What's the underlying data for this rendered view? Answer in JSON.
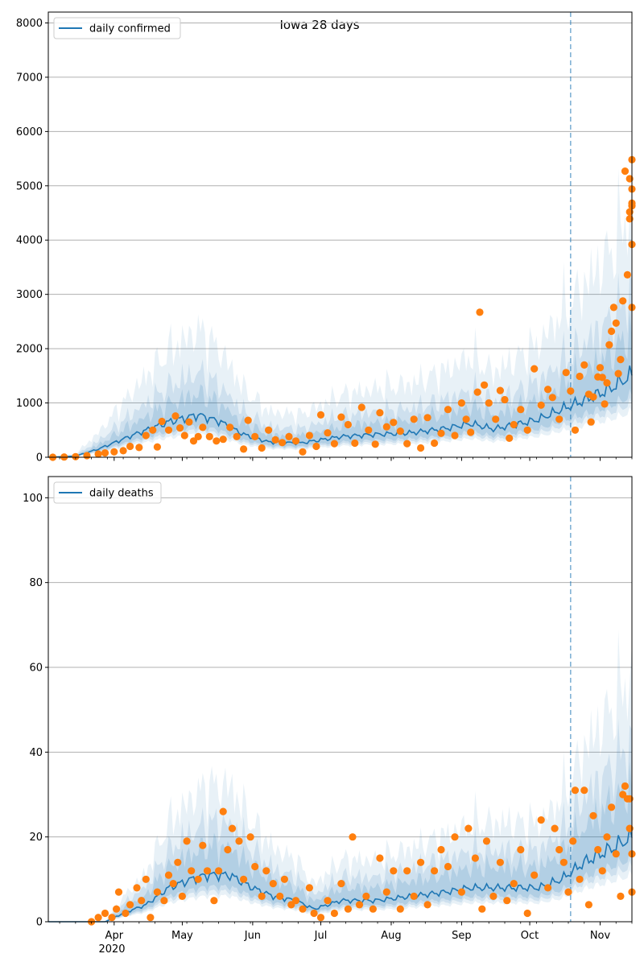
{
  "figure": {
    "title": "Iowa 28 days",
    "x_tick_labels": [
      "Apr",
      "May",
      "Jun",
      "Jul",
      "Aug",
      "Sep",
      "Oct",
      "Nov"
    ],
    "x_year_label": "2020"
  },
  "colors": {
    "line": "#1f77b4",
    "points": "#ff7f0e",
    "band": "#1f77b4",
    "grid": "#b0b0b0",
    "vline": "#1f77b4"
  },
  "chart_data": [
    {
      "type": "scatter",
      "legend": "daily confirmed",
      "legend_position": "top-left",
      "grid": "horizontal",
      "xlim": [
        "2020-03-03",
        "2020-11-15"
      ],
      "ylim": [
        0,
        8200
      ],
      "yticks": [
        0,
        1000,
        2000,
        3000,
        4000,
        5000,
        6000,
        7000,
        8000
      ],
      "vline_date": "2020-10-19",
      "trend_keypoints": [
        [
          "2020-03-03",
          0
        ],
        [
          "2020-03-15",
          20
        ],
        [
          "2020-03-25",
          150
        ],
        [
          "2020-04-10",
          420
        ],
        [
          "2020-04-25",
          650
        ],
        [
          "2020-05-08",
          780
        ],
        [
          "2020-05-18",
          650
        ],
        [
          "2020-05-28",
          420
        ],
        [
          "2020-06-08",
          280
        ],
        [
          "2020-06-22",
          260
        ],
        [
          "2020-07-10",
          380
        ],
        [
          "2020-07-25",
          420
        ],
        [
          "2020-08-10",
          450
        ],
        [
          "2020-08-25",
          530
        ],
        [
          "2020-09-05",
          620
        ],
        [
          "2020-09-15",
          520
        ],
        [
          "2020-09-25",
          600
        ],
        [
          "2020-10-05",
          700
        ],
        [
          "2020-10-15",
          880
        ],
        [
          "2020-10-25",
          1050
        ],
        [
          "2020-11-05",
          1250
        ],
        [
          "2020-11-15",
          1520
        ]
      ],
      "band_scales": [
        3.0,
        2.0,
        1.5
      ],
      "inner_band_scales": [
        0.55,
        0.75
      ],
      "points": [
        [
          "2020-03-05",
          0
        ],
        [
          "2020-03-10",
          5
        ],
        [
          "2020-03-15",
          10
        ],
        [
          "2020-03-20",
          30
        ],
        [
          "2020-03-25",
          60
        ],
        [
          "2020-03-28",
          80
        ],
        [
          "2020-04-01",
          100
        ],
        [
          "2020-04-05",
          120
        ],
        [
          "2020-04-08",
          200
        ],
        [
          "2020-04-12",
          180
        ],
        [
          "2020-04-15",
          400
        ],
        [
          "2020-04-18",
          500
        ],
        [
          "2020-04-20",
          190
        ],
        [
          "2020-04-22",
          660
        ],
        [
          "2020-04-25",
          500
        ],
        [
          "2020-04-28",
          760
        ],
        [
          "2020-04-30",
          540
        ],
        [
          "2020-05-02",
          400
        ],
        [
          "2020-05-04",
          650
        ],
        [
          "2020-05-06",
          300
        ],
        [
          "2020-05-08",
          380
        ],
        [
          "2020-05-10",
          550
        ],
        [
          "2020-05-13",
          380
        ],
        [
          "2020-05-16",
          300
        ],
        [
          "2020-05-19",
          330
        ],
        [
          "2020-05-22",
          550
        ],
        [
          "2020-05-25",
          380
        ],
        [
          "2020-05-28",
          150
        ],
        [
          "2020-05-30",
          680
        ],
        [
          "2020-06-02",
          380
        ],
        [
          "2020-06-05",
          170
        ],
        [
          "2020-06-08",
          500
        ],
        [
          "2020-06-11",
          320
        ],
        [
          "2020-06-14",
          270
        ],
        [
          "2020-06-17",
          380
        ],
        [
          "2020-06-20",
          300
        ],
        [
          "2020-06-23",
          100
        ],
        [
          "2020-06-26",
          400
        ],
        [
          "2020-06-29",
          200
        ],
        [
          "2020-07-01",
          780
        ],
        [
          "2020-07-04",
          450
        ],
        [
          "2020-07-07",
          250
        ],
        [
          "2020-07-10",
          740
        ],
        [
          "2020-07-13",
          600
        ],
        [
          "2020-07-16",
          260
        ],
        [
          "2020-07-19",
          920
        ],
        [
          "2020-07-22",
          500
        ],
        [
          "2020-07-25",
          240
        ],
        [
          "2020-07-27",
          820
        ],
        [
          "2020-07-30",
          560
        ],
        [
          "2020-08-02",
          640
        ],
        [
          "2020-08-05",
          480
        ],
        [
          "2020-08-08",
          250
        ],
        [
          "2020-08-11",
          700
        ],
        [
          "2020-08-14",
          170
        ],
        [
          "2020-08-17",
          730
        ],
        [
          "2020-08-20",
          260
        ],
        [
          "2020-08-23",
          440
        ],
        [
          "2020-08-26",
          880
        ],
        [
          "2020-08-29",
          400
        ],
        [
          "2020-09-01",
          1000
        ],
        [
          "2020-09-03",
          700
        ],
        [
          "2020-09-05",
          460
        ],
        [
          "2020-09-08",
          1200
        ],
        [
          "2020-09-09",
          2670
        ],
        [
          "2020-09-11",
          1330
        ],
        [
          "2020-09-13",
          1000
        ],
        [
          "2020-09-16",
          700
        ],
        [
          "2020-09-18",
          1230
        ],
        [
          "2020-09-20",
          1060
        ],
        [
          "2020-09-22",
          350
        ],
        [
          "2020-09-24",
          600
        ],
        [
          "2020-09-27",
          880
        ],
        [
          "2020-09-30",
          500
        ],
        [
          "2020-10-03",
          1630
        ],
        [
          "2020-10-06",
          960
        ],
        [
          "2020-10-09",
          1250
        ],
        [
          "2020-10-11",
          1100
        ],
        [
          "2020-10-14",
          700
        ],
        [
          "2020-10-17",
          1560
        ],
        [
          "2020-10-19",
          1220
        ],
        [
          "2020-10-21",
          500
        ],
        [
          "2020-10-23",
          1490
        ],
        [
          "2020-10-25",
          1700
        ],
        [
          "2020-10-27",
          1160
        ],
        [
          "2020-10-28",
          650
        ],
        [
          "2020-10-29",
          1110
        ],
        [
          "2020-10-31",
          1480
        ],
        [
          "2020-11-01",
          1650
        ],
        [
          "2020-11-02",
          1470
        ],
        [
          "2020-11-03",
          980
        ],
        [
          "2020-11-04",
          1370
        ],
        [
          "2020-11-05",
          2070
        ],
        [
          "2020-11-06",
          2320
        ],
        [
          "2020-11-07",
          2760
        ],
        [
          "2020-11-08",
          2470
        ],
        [
          "2020-11-09",
          1540
        ],
        [
          "2020-11-10",
          1800
        ],
        [
          "2020-11-11",
          2880
        ],
        [
          "2020-11-12",
          5270
        ],
        [
          "2020-11-13",
          3360
        ],
        [
          "2020-11-14",
          4390
        ],
        [
          "2020-11-14",
          4520
        ],
        [
          "2020-11-14",
          5130
        ],
        [
          "2020-11-15",
          3920
        ],
        [
          "2020-11-15",
          4630
        ],
        [
          "2020-11-15",
          4940
        ],
        [
          "2020-11-15",
          5480
        ],
        [
          "2020-11-15",
          4680
        ],
        [
          "2020-11-15",
          2760
        ]
      ]
    },
    {
      "type": "scatter",
      "legend": "daily deaths",
      "legend_position": "top-left",
      "grid": "horizontal",
      "xlim": [
        "2020-03-03",
        "2020-11-15"
      ],
      "ylim": [
        0,
        105
      ],
      "yticks": [
        0,
        20,
        40,
        60,
        80,
        100
      ],
      "vline_date": "2020-10-19",
      "trend_keypoints": [
        [
          "2020-03-03",
          0
        ],
        [
          "2020-03-28",
          0
        ],
        [
          "2020-04-05",
          2
        ],
        [
          "2020-04-15",
          4
        ],
        [
          "2020-04-25",
          8
        ],
        [
          "2020-05-05",
          10
        ],
        [
          "2020-05-12",
          11
        ],
        [
          "2020-05-22",
          11
        ],
        [
          "2020-06-01",
          8
        ],
        [
          "2020-06-10",
          6
        ],
        [
          "2020-06-20",
          5
        ],
        [
          "2020-06-28",
          3
        ],
        [
          "2020-07-10",
          5
        ],
        [
          "2020-07-25",
          5
        ],
        [
          "2020-08-10",
          6
        ],
        [
          "2020-08-25",
          7
        ],
        [
          "2020-09-05",
          8
        ],
        [
          "2020-09-20",
          8
        ],
        [
          "2020-10-05",
          8
        ],
        [
          "2020-10-15",
          10
        ],
        [
          "2020-10-25",
          14
        ],
        [
          "2020-11-05",
          17
        ],
        [
          "2020-11-15",
          20
        ]
      ],
      "band_scales": [
        2.9,
        2.1,
        1.6
      ],
      "inner_band_scales": [
        0.55,
        0.75
      ],
      "points": [
        [
          "2020-03-22",
          0
        ],
        [
          "2020-03-25",
          1
        ],
        [
          "2020-03-28",
          2
        ],
        [
          "2020-03-31",
          1
        ],
        [
          "2020-04-02",
          3
        ],
        [
          "2020-04-03",
          7
        ],
        [
          "2020-04-06",
          2
        ],
        [
          "2020-04-08",
          4
        ],
        [
          "2020-04-11",
          8
        ],
        [
          "2020-04-13",
          5
        ],
        [
          "2020-04-15",
          10
        ],
        [
          "2020-04-17",
          1
        ],
        [
          "2020-04-20",
          7
        ],
        [
          "2020-04-23",
          5
        ],
        [
          "2020-04-25",
          11
        ],
        [
          "2020-04-27",
          9
        ],
        [
          "2020-04-29",
          14
        ],
        [
          "2020-05-01",
          6
        ],
        [
          "2020-05-03",
          19
        ],
        [
          "2020-05-05",
          12
        ],
        [
          "2020-05-08",
          10
        ],
        [
          "2020-05-10",
          18
        ],
        [
          "2020-05-12",
          12
        ],
        [
          "2020-05-15",
          5
        ],
        [
          "2020-05-17",
          12
        ],
        [
          "2020-05-19",
          26
        ],
        [
          "2020-05-21",
          17
        ],
        [
          "2020-05-23",
          22
        ],
        [
          "2020-05-26",
          19
        ],
        [
          "2020-05-28",
          10
        ],
        [
          "2020-05-31",
          20
        ],
        [
          "2020-06-02",
          13
        ],
        [
          "2020-06-05",
          6
        ],
        [
          "2020-06-07",
          12
        ],
        [
          "2020-06-10",
          9
        ],
        [
          "2020-06-13",
          6
        ],
        [
          "2020-06-15",
          10
        ],
        [
          "2020-06-18",
          4
        ],
        [
          "2020-06-20",
          5
        ],
        [
          "2020-06-23",
          3
        ],
        [
          "2020-06-26",
          8
        ],
        [
          "2020-06-28",
          2
        ],
        [
          "2020-07-01",
          1
        ],
        [
          "2020-07-04",
          5
        ],
        [
          "2020-07-07",
          2
        ],
        [
          "2020-07-10",
          9
        ],
        [
          "2020-07-13",
          3
        ],
        [
          "2020-07-15",
          20
        ],
        [
          "2020-07-18",
          4
        ],
        [
          "2020-07-21",
          6
        ],
        [
          "2020-07-24",
          3
        ],
        [
          "2020-07-27",
          15
        ],
        [
          "2020-07-30",
          7
        ],
        [
          "2020-08-02",
          12
        ],
        [
          "2020-08-05",
          3
        ],
        [
          "2020-08-08",
          12
        ],
        [
          "2020-08-11",
          6
        ],
        [
          "2020-08-14",
          14
        ],
        [
          "2020-08-17",
          4
        ],
        [
          "2020-08-20",
          12
        ],
        [
          "2020-08-23",
          17
        ],
        [
          "2020-08-26",
          13
        ],
        [
          "2020-08-29",
          20
        ],
        [
          "2020-09-01",
          7
        ],
        [
          "2020-09-04",
          22
        ],
        [
          "2020-09-07",
          15
        ],
        [
          "2020-09-10",
          3
        ],
        [
          "2020-09-12",
          19
        ],
        [
          "2020-09-15",
          6
        ],
        [
          "2020-09-18",
          14
        ],
        [
          "2020-09-21",
          5
        ],
        [
          "2020-09-24",
          9
        ],
        [
          "2020-09-27",
          17
        ],
        [
          "2020-09-30",
          2
        ],
        [
          "2020-10-03",
          11
        ],
        [
          "2020-10-06",
          24
        ],
        [
          "2020-10-09",
          8
        ],
        [
          "2020-10-12",
          22
        ],
        [
          "2020-10-14",
          17
        ],
        [
          "2020-10-16",
          14
        ],
        [
          "2020-10-18",
          7
        ],
        [
          "2020-10-20",
          19
        ],
        [
          "2020-10-21",
          31
        ],
        [
          "2020-10-23",
          10
        ],
        [
          "2020-10-25",
          31
        ],
        [
          "2020-10-27",
          4
        ],
        [
          "2020-10-29",
          25
        ],
        [
          "2020-10-31",
          17
        ],
        [
          "2020-11-02",
          12
        ],
        [
          "2020-11-04",
          20
        ],
        [
          "2020-11-06",
          27
        ],
        [
          "2020-11-08",
          16
        ],
        [
          "2020-11-10",
          6
        ],
        [
          "2020-11-11",
          30
        ],
        [
          "2020-11-12",
          32
        ],
        [
          "2020-11-13",
          29
        ],
        [
          "2020-11-14",
          22
        ],
        [
          "2020-11-14",
          29
        ],
        [
          "2020-11-15",
          16
        ],
        [
          "2020-11-15",
          7
        ]
      ]
    }
  ]
}
